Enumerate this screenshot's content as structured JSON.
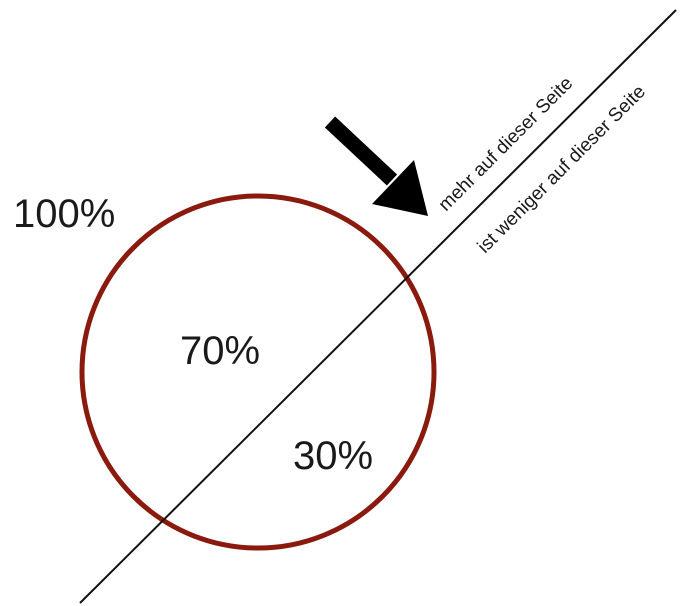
{
  "labels": {
    "total": "100%",
    "inside_large": "70%",
    "inside_small": "30%",
    "side_more": "mehr auf dieser Seite",
    "side_less": "ist weniger auf dieser Seite"
  },
  "colors": {
    "circle": "#8b1a0e",
    "line": "#111111",
    "arrow": "#000000",
    "text": "#1a1a1a"
  },
  "icons": {
    "pointer": "arrow-down-right-icon"
  }
}
